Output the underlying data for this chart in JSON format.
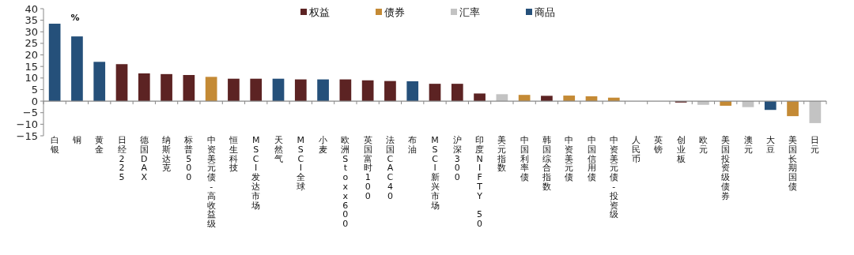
{
  "chart_data": {
    "type": "bar",
    "categories": [
      "白银",
      "铜",
      "黄金",
      "日经225",
      "德国DAX",
      "纳斯达克",
      "标普500",
      "中资美元债-高收益级",
      "恒生科技",
      "MSCI发达市场",
      "天然气",
      "MSCI全球",
      "小麦",
      "欧洲Stoxx600",
      "英国富时100",
      "法国CAC40",
      "布油",
      "MSCI新兴市场",
      "沪深300",
      "印度NIFTY 50",
      "美元指数",
      "中国利率债",
      "韩国综合指数",
      "中资美元债",
      "中国信用债",
      "中资美元债-投资级",
      "人民币",
      "英镑",
      "创业板",
      "欧元",
      "美国投资级债券",
      "澳元",
      "大豆",
      "美国长期国债",
      "日元"
    ],
    "series": [
      {
        "name": "权益",
        "color": "#5c2323",
        "values": [
          null,
          null,
          null,
          16,
          12,
          11.7,
          11.3,
          null,
          9.7,
          9.7,
          null,
          9.4,
          null,
          9.4,
          9,
          8.7,
          null,
          7.5,
          7.5,
          3.3,
          null,
          null,
          2.3,
          null,
          null,
          null,
          null,
          null,
          -0.6,
          null,
          null,
          null,
          null,
          null,
          null
        ]
      },
      {
        "name": "债券",
        "color": "#c48a35",
        "values": [
          null,
          null,
          null,
          null,
          null,
          null,
          null,
          10.5,
          null,
          null,
          null,
          null,
          null,
          null,
          null,
          null,
          null,
          null,
          null,
          null,
          null,
          2.7,
          null,
          2.4,
          2.1,
          1.5,
          null,
          null,
          null,
          null,
          -2,
          null,
          null,
          -6.5,
          null
        ]
      },
      {
        "name": "汇率",
        "color": "#c3c3c3",
        "values": [
          null,
          null,
          null,
          null,
          null,
          null,
          null,
          null,
          null,
          null,
          null,
          null,
          null,
          null,
          null,
          null,
          null,
          null,
          null,
          null,
          3,
          null,
          null,
          null,
          null,
          null,
          null,
          null,
          null,
          -1.6,
          null,
          -2.6,
          null,
          null,
          -9.5
        ]
      },
      {
        "name": "商品",
        "color": "#25507a",
        "values": [
          33.5,
          28,
          17,
          null,
          null,
          null,
          null,
          null,
          null,
          null,
          9.7,
          null,
          9.4,
          null,
          null,
          null,
          8.6,
          null,
          null,
          null,
          null,
          null,
          null,
          null,
          null,
          null,
          null,
          null,
          null,
          null,
          null,
          null,
          -3.8,
          null,
          null
        ]
      }
    ],
    "ylim": [
      -15,
      40
    ],
    "yticks": [
      -15,
      -10,
      -5,
      0,
      5,
      10,
      15,
      20,
      25,
      30,
      35,
      40
    ],
    "annotations": [
      "%"
    ],
    "legend": "top"
  }
}
